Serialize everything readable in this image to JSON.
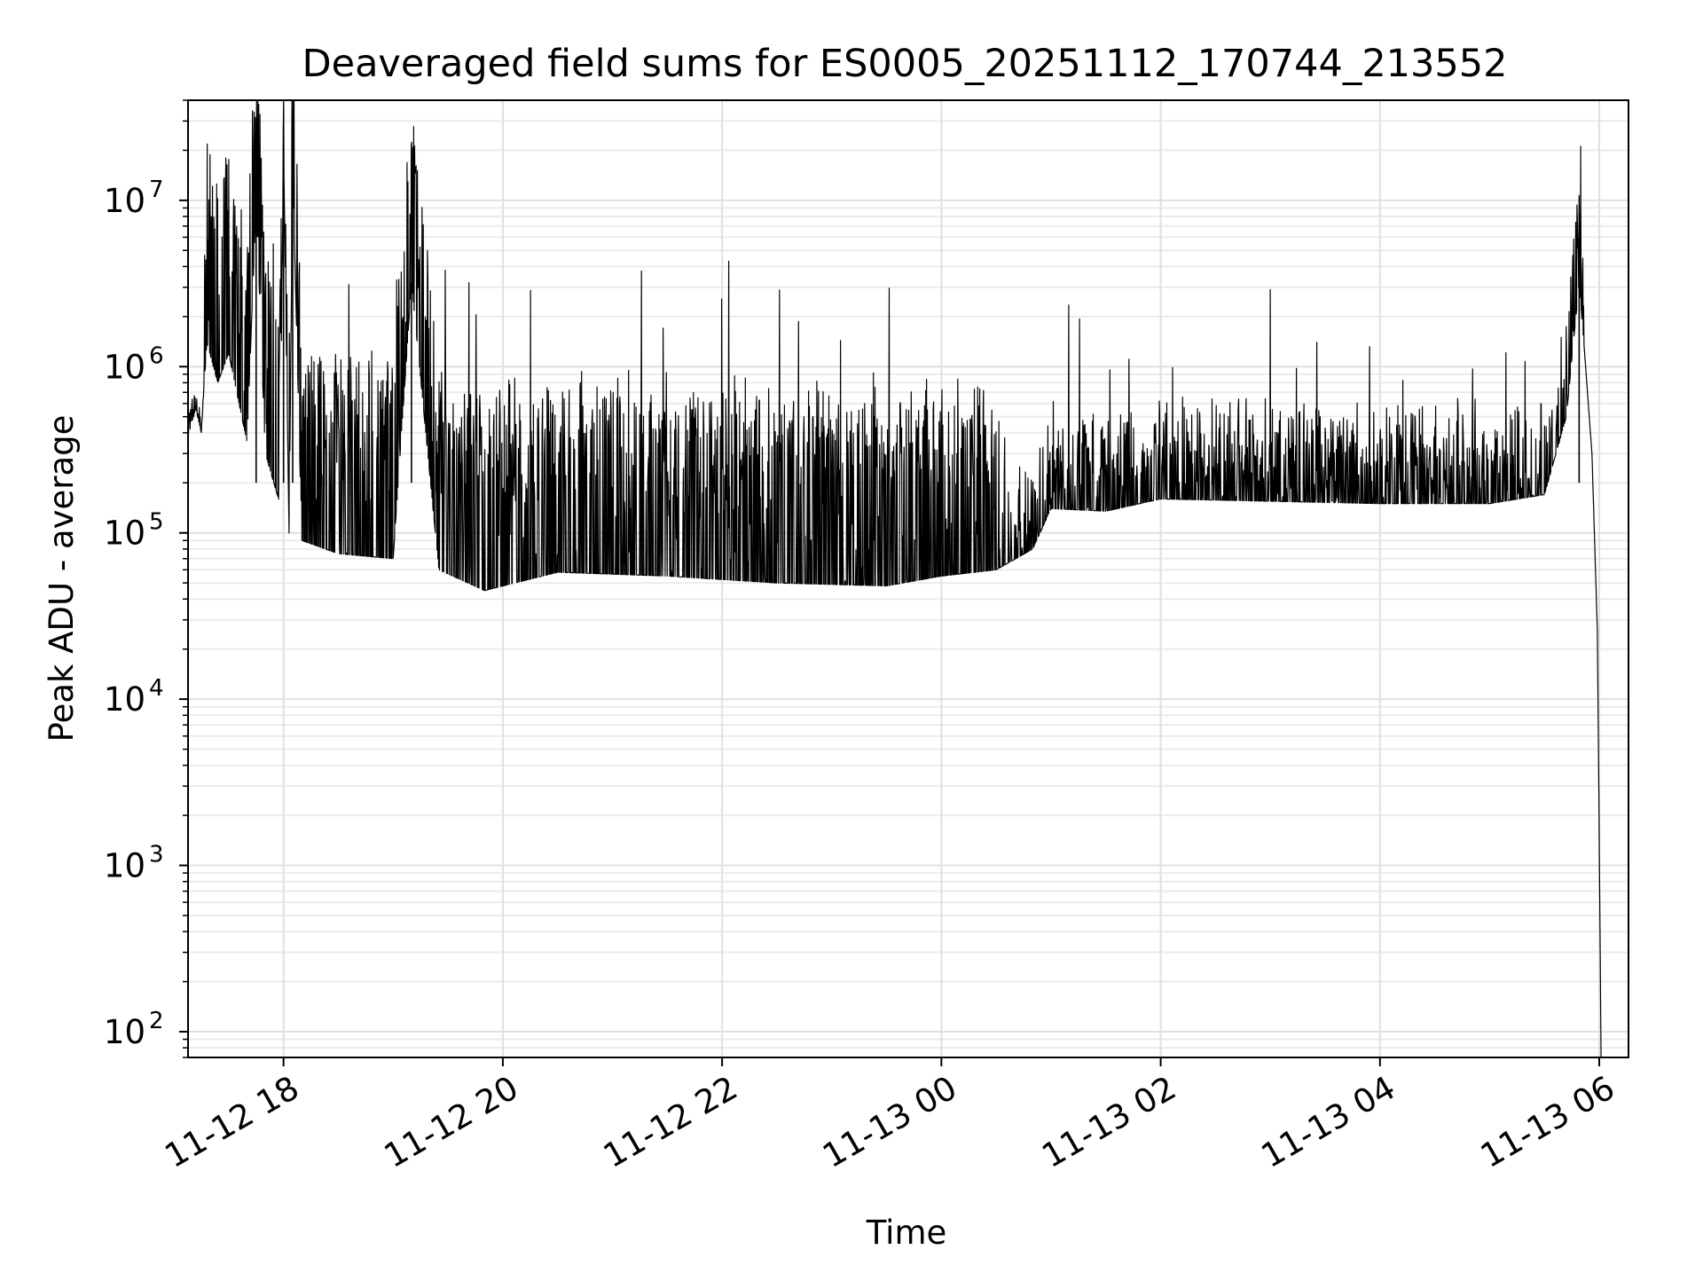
{
  "chart_data": {
    "type": "line",
    "title": "Deaveraged field sums for ES0005_20251112_170744_213552",
    "xlabel": "Time",
    "ylabel": "Peak ADU - average",
    "yscale": "log",
    "ylim": [
      70,
      40000000
    ],
    "xlim": [
      "2025-11-12 17:07:44",
      "2025-11-13 06:16:00"
    ],
    "grid": true,
    "grid_minor": true,
    "x_ticks": [
      {
        "value": "2025-11-12 18:00",
        "label": "11-12 18"
      },
      {
        "value": "2025-11-12 20:00",
        "label": "11-12 20"
      },
      {
        "value": "2025-11-12 22:00",
        "label": "11-12 22"
      },
      {
        "value": "2025-11-13 00:00",
        "label": "11-13 00"
      },
      {
        "value": "2025-11-13 02:00",
        "label": "11-13 02"
      },
      {
        "value": "2025-11-13 04:00",
        "label": "11-13 04"
      },
      {
        "value": "2025-11-13 06:00",
        "label": "11-13 06"
      }
    ],
    "y_ticks": [
      {
        "value": 100,
        "base": "10",
        "exp": "2"
      },
      {
        "value": 1000,
        "base": "10",
        "exp": "3"
      },
      {
        "value": 10000,
        "base": "10",
        "exp": "4"
      },
      {
        "value": 100000,
        "base": "10",
        "exp": "5"
      },
      {
        "value": 1000000,
        "base": "10",
        "exp": "6"
      },
      {
        "value": 10000000,
        "base": "10",
        "exp": "7"
      }
    ],
    "series": [
      {
        "color": "#000000",
        "points": [
          [
            "2025-11-12 17:07:44",
            380000
          ],
          [
            "2025-11-12 17:12",
            560000
          ],
          [
            "2025-11-12 17:15",
            400000
          ],
          [
            "2025-11-12 17:18",
            1400000
          ],
          [
            "2025-11-12 17:24",
            800000
          ],
          [
            "2025-11-12 17:30",
            1200000
          ],
          [
            "2025-11-12 17:40",
            350000
          ],
          [
            "2025-11-12 17:45",
            10000000
          ],
          [
            "2025-11-12 17:50",
            300000
          ],
          [
            "2025-11-12 17:58",
            150000
          ],
          [
            "2025-11-12 18:00",
            22000000
          ],
          [
            "2025-11-12 18:03",
            100000
          ],
          [
            "2025-11-12 18:05",
            15000000
          ],
          [
            "2025-11-12 18:10",
            90000
          ],
          [
            "2025-11-12 18:30",
            75000
          ],
          [
            "2025-11-12 19:00",
            70000
          ],
          [
            "2025-11-12 19:10",
            3200000
          ],
          [
            "2025-11-12 19:25",
            60000
          ],
          [
            "2025-11-12 19:50",
            45000
          ],
          [
            "2025-11-12 20:30",
            58000
          ],
          [
            "2025-11-12 21:30",
            55000
          ],
          [
            "2025-11-12 22:30",
            50000
          ],
          [
            "2025-11-12 23:30",
            48000
          ],
          [
            "2025-11-13 00:00",
            55000
          ],
          [
            "2025-11-13 00:30",
            60000
          ],
          [
            "2025-11-13 00:50",
            80000
          ],
          [
            "2025-11-13 01:00",
            140000
          ],
          [
            "2025-11-13 01:30",
            135000
          ],
          [
            "2025-11-13 02:00",
            160000
          ],
          [
            "2025-11-13 03:00",
            155000
          ],
          [
            "2025-11-13 04:00",
            150000
          ],
          [
            "2025-11-13 05:00",
            150000
          ],
          [
            "2025-11-13 05:30",
            170000
          ],
          [
            "2025-11-13 05:42",
            500000
          ],
          [
            "2025-11-13 05:49",
            3200000
          ],
          [
            "2025-11-13 05:52",
            1200000
          ],
          [
            "2025-11-13 05:56",
            300000
          ],
          [
            "2025-11-13 05:59",
            25000
          ],
          [
            "2025-11-13 06:00",
            1400
          ],
          [
            "2025-11-13 06:01",
            70
          ]
        ]
      }
    ]
  }
}
